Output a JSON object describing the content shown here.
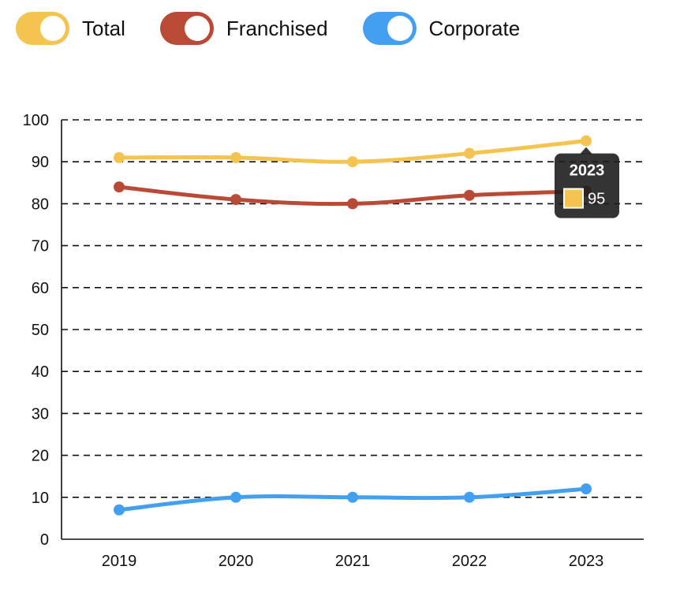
{
  "legend": {
    "items": [
      {
        "label": "Total",
        "color": "#f5c34f",
        "enabled": true
      },
      {
        "label": "Franchised",
        "color": "#b94a36",
        "enabled": true
      },
      {
        "label": "Corporate",
        "color": "#43a0f0",
        "enabled": true
      }
    ]
  },
  "chart_data": {
    "type": "line",
    "categories": [
      "2019",
      "2020",
      "2021",
      "2022",
      "2023"
    ],
    "series": [
      {
        "name": "Total",
        "color": "#f5c34f",
        "values": [
          91,
          91,
          90,
          92,
          95
        ]
      },
      {
        "name": "Franchised",
        "color": "#b94a36",
        "values": [
          84,
          81,
          80,
          82,
          83
        ]
      },
      {
        "name": "Corporate",
        "color": "#43a0f0",
        "values": [
          7,
          10,
          10,
          10,
          12
        ]
      }
    ],
    "ylim": [
      0,
      100
    ],
    "yticks": [
      0,
      10,
      20,
      30,
      40,
      50,
      60,
      70,
      80,
      90,
      100
    ],
    "grid": "dashed-horizontal",
    "legend_position": "top-left",
    "tooltip": {
      "title": "2023",
      "series": "Total",
      "value": "95",
      "swatch_color": "#f5c34f"
    }
  }
}
